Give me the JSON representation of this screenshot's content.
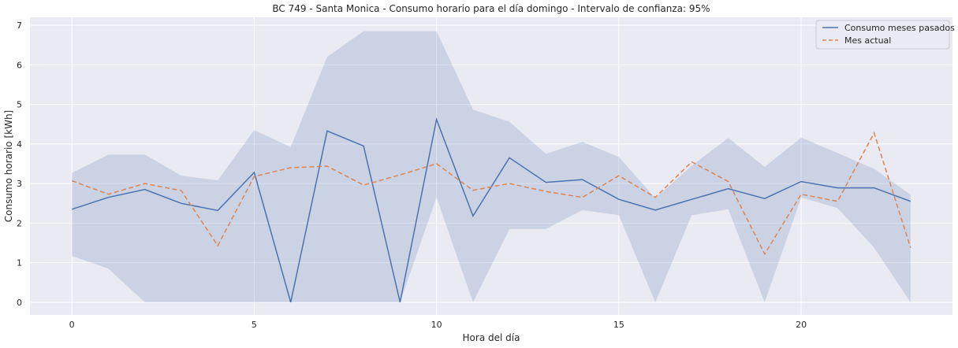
{
  "chart_data": {
    "type": "line",
    "title": "BC 749 - Santa Monica - Consumo horario para el día domingo - Intervalo de confianza: 95%",
    "xlabel": "Hora del día",
    "ylabel": "Consumo horario [kWh]",
    "xlim": [
      -1.15,
      24.15
    ],
    "ylim": [
      -0.32,
      7.2
    ],
    "xticks": [
      0,
      5,
      10,
      15,
      20
    ],
    "yticks": [
      0,
      1,
      2,
      3,
      4,
      5,
      6,
      7
    ],
    "grid": true,
    "legend_position": "top-right",
    "x": [
      0,
      1,
      2,
      3,
      4,
      5,
      6,
      7,
      8,
      9,
      10,
      11,
      12,
      13,
      14,
      15,
      16,
      17,
      18,
      19,
      20,
      21,
      22,
      23
    ],
    "series": [
      {
        "name": "Consumo meses pasados",
        "style": "solid",
        "color": "#4c72b0",
        "values": [
          2.35,
          2.65,
          2.85,
          2.5,
          2.32,
          3.28,
          0.0,
          4.33,
          3.95,
          0.0,
          4.62,
          2.18,
          3.65,
          3.03,
          3.1,
          2.6,
          2.33,
          2.6,
          2.87,
          2.62,
          3.05,
          2.89,
          2.89,
          2.55
        ]
      },
      {
        "name": "Mes actual",
        "style": "dashed",
        "color": "#dd8452",
        "values": [
          3.07,
          2.73,
          3.0,
          2.82,
          1.43,
          3.18,
          3.4,
          3.44,
          2.96,
          3.22,
          3.5,
          2.83,
          3.0,
          2.8,
          2.65,
          3.2,
          2.65,
          3.55,
          3.05,
          1.22,
          2.73,
          2.55,
          4.28,
          1.38
        ]
      }
    ],
    "confidence_band": {
      "color": "#4c72b0",
      "lower": [
        1.17,
        0.85,
        0.0,
        0.0,
        0.0,
        0.0,
        0.0,
        0.0,
        0.0,
        0.0,
        2.65,
        0.0,
        1.85,
        1.85,
        2.33,
        2.2,
        0.0,
        2.2,
        2.35,
        0.0,
        2.65,
        2.38,
        1.38,
        0.0
      ],
      "upper": [
        3.27,
        3.73,
        3.73,
        3.2,
        3.08,
        4.35,
        3.92,
        6.2,
        6.85,
        6.85,
        6.85,
        4.87,
        4.56,
        3.75,
        4.05,
        3.67,
        2.63,
        3.45,
        4.15,
        3.42,
        4.16,
        3.77,
        3.37,
        2.72
      ]
    }
  }
}
